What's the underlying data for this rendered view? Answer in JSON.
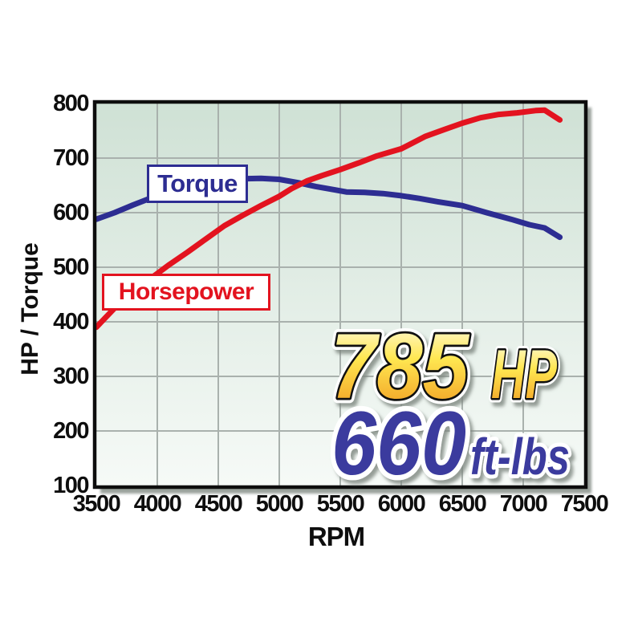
{
  "chart_data": {
    "type": "line",
    "title": "",
    "xlabel": "RPM",
    "ylabel": "HP / Torque",
    "xlim": [
      3500,
      7500
    ],
    "ylim": [
      100,
      800
    ],
    "x_ticks": [
      3500,
      4000,
      4500,
      5000,
      5500,
      6000,
      6500,
      7000,
      7500
    ],
    "y_ticks": [
      800,
      700,
      600,
      500,
      400,
      300,
      200,
      100
    ],
    "grid": true,
    "legend_position": "boxed-labels-on-plot",
    "series": [
      {
        "name": "Torque",
        "color": "#2d2d92",
        "units": "ft-lbs",
        "peak": 660,
        "points": [
          [
            3500,
            588
          ],
          [
            3650,
            600
          ],
          [
            3800,
            614
          ],
          [
            3950,
            627
          ],
          [
            4100,
            638
          ],
          [
            4250,
            647
          ],
          [
            4400,
            655
          ],
          [
            4550,
            659
          ],
          [
            4700,
            662
          ],
          [
            4850,
            663
          ],
          [
            5000,
            661
          ],
          [
            5150,
            655
          ],
          [
            5300,
            648
          ],
          [
            5450,
            642
          ],
          [
            5550,
            638
          ],
          [
            5700,
            637
          ],
          [
            5850,
            635
          ],
          [
            6000,
            631
          ],
          [
            6150,
            626
          ],
          [
            6300,
            620
          ],
          [
            6500,
            613
          ],
          [
            6700,
            600
          ],
          [
            6900,
            588
          ],
          [
            7050,
            578
          ],
          [
            7175,
            572
          ],
          [
            7300,
            555
          ]
        ]
      },
      {
        "name": "Horsepower",
        "color": "#e3131f",
        "units": "HP",
        "peak": 785,
        "points": [
          [
            3500,
            390
          ],
          [
            3650,
            425
          ],
          [
            3800,
            458
          ],
          [
            3950,
            480
          ],
          [
            4100,
            505
          ],
          [
            4250,
            528
          ],
          [
            4400,
            552
          ],
          [
            4550,
            576
          ],
          [
            4700,
            595
          ],
          [
            4850,
            613
          ],
          [
            5000,
            630
          ],
          [
            5100,
            644
          ],
          [
            5225,
            658
          ],
          [
            5350,
            668
          ],
          [
            5500,
            679
          ],
          [
            5650,
            691
          ],
          [
            5800,
            704
          ],
          [
            6000,
            717
          ],
          [
            6200,
            740
          ],
          [
            6350,
            752
          ],
          [
            6500,
            764
          ],
          [
            6650,
            774
          ],
          [
            6800,
            780
          ],
          [
            6950,
            783
          ],
          [
            7100,
            787
          ],
          [
            7175,
            788
          ],
          [
            7300,
            770
          ]
        ]
      }
    ],
    "annotations": {
      "hp_value": "785",
      "hp_unit": "HP",
      "torque_value": "660",
      "torque_unit": "ft-lbs"
    }
  },
  "colors": {
    "horsepower_red": "#e3131f",
    "torque_blue": "#2d2d92",
    "big_number_blue": "#3b3b9e",
    "gold_gradient_top": "#fffdf0",
    "gold_gradient_mid": "#ffe751",
    "gold_gradient_bottom": "#ef941c",
    "plot_bg_top": "#cfe1d5",
    "plot_bg_bottom": "#f6faf7",
    "grid_gray": "#a9b1ad"
  }
}
